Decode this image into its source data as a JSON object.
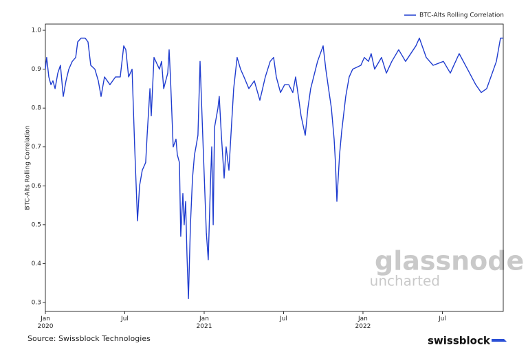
{
  "chart_data": {
    "type": "line",
    "y_label": "BTC-Alts Rolling Correlation",
    "legend": "upper right",
    "source": "Source: Swissblock Technologies",
    "brand": "swissblock",
    "watermark_title": "glassnode",
    "watermark_subtitle": "uncharted",
    "xlim": [
      0,
      34.6
    ],
    "xticks": [
      {
        "value": 0,
        "label": "Jan\n2020"
      },
      {
        "value": 6,
        "label": "Jul"
      },
      {
        "value": 12,
        "label": "Jan\n2021"
      },
      {
        "value": 18,
        "label": "Jul"
      },
      {
        "value": 24,
        "label": "Jan\n2022"
      },
      {
        "value": 30,
        "label": "Jul"
      }
    ],
    "ylim": [
      0.277,
      1.016
    ],
    "yticks": [
      0.3,
      0.4,
      0.5,
      0.6,
      0.7,
      0.8,
      0.9,
      {
        "value": 1,
        "label": "1.0"
      }
    ],
    "series": [
      {
        "name": "BTC-Alts Rolling Correlation",
        "color": "#1f3ccf",
        "x": [
          0,
          0.1,
          0.26,
          0.42,
          0.57,
          0.73,
          0.94,
          1.14,
          1.35,
          1.56,
          1.77,
          2.03,
          2.29,
          2.44,
          2.7,
          3.01,
          3.22,
          3.43,
          3.74,
          4.0,
          4.21,
          4.47,
          4.88,
          5.3,
          5.66,
          5.92,
          6.08,
          6.29,
          6.55,
          6.75,
          6.96,
          7.12,
          7.32,
          7.58,
          7.69,
          7.9,
          8.0,
          8.21,
          8.62,
          8.78,
          8.94,
          9.25,
          9.35,
          9.45,
          9.66,
          9.87,
          9.97,
          10.13,
          10.23,
          10.39,
          10.49,
          10.6,
          10.7,
          10.81,
          10.96,
          11.12,
          11.27,
          11.38,
          11.53,
          11.69,
          11.9,
          12.16,
          12.31,
          12.47,
          12.57,
          12.68,
          12.78,
          13.04,
          13.14,
          13.3,
          13.51,
          13.66,
          13.87,
          13.97,
          14.23,
          14.49,
          14.75,
          15.01,
          15.38,
          15.79,
          16.21,
          16.62,
          16.99,
          17.25,
          17.45,
          17.77,
          18.08,
          18.39,
          18.7,
          18.91,
          19.12,
          19.32,
          19.64,
          19.84,
          20.05,
          20.57,
          20.99,
          21.19,
          21.4,
          21.61,
          21.82,
          21.92,
          22.03,
          22.23,
          22.39,
          22.7,
          22.96,
          23.22,
          23.84,
          24.1,
          24.42,
          24.62,
          24.88,
          25.4,
          25.77,
          26.18,
          26.7,
          27.22,
          28.0,
          28.26,
          28.78,
          29.3,
          30.08,
          30.6,
          31.27,
          31.9,
          32.52,
          32.94,
          33.35,
          33.77,
          34.08,
          34.39,
          34.6
        ],
        "values": [
          0.9,
          0.93,
          0.88,
          0.86,
          0.87,
          0.85,
          0.89,
          0.91,
          0.83,
          0.87,
          0.9,
          0.92,
          0.93,
          0.97,
          0.98,
          0.98,
          0.97,
          0.91,
          0.9,
          0.87,
          0.83,
          0.88,
          0.86,
          0.88,
          0.88,
          0.96,
          0.95,
          0.88,
          0.9,
          0.7,
          0.51,
          0.6,
          0.64,
          0.66,
          0.73,
          0.85,
          0.78,
          0.93,
          0.9,
          0.92,
          0.85,
          0.89,
          0.95,
          0.88,
          0.7,
          0.72,
          0.68,
          0.66,
          0.47,
          0.58,
          0.5,
          0.56,
          0.42,
          0.31,
          0.5,
          0.62,
          0.68,
          0.7,
          0.73,
          0.92,
          0.72,
          0.48,
          0.41,
          0.6,
          0.7,
          0.5,
          0.75,
          0.8,
          0.83,
          0.73,
          0.62,
          0.7,
          0.64,
          0.7,
          0.85,
          0.93,
          0.9,
          0.88,
          0.85,
          0.87,
          0.82,
          0.88,
          0.92,
          0.93,
          0.88,
          0.84,
          0.86,
          0.86,
          0.84,
          0.88,
          0.83,
          0.78,
          0.73,
          0.8,
          0.85,
          0.92,
          0.96,
          0.9,
          0.85,
          0.8,
          0.72,
          0.66,
          0.56,
          0.68,
          0.74,
          0.83,
          0.88,
          0.9,
          0.91,
          0.93,
          0.92,
          0.94,
          0.9,
          0.93,
          0.89,
          0.92,
          0.95,
          0.92,
          0.96,
          0.98,
          0.93,
          0.91,
          0.92,
          0.89,
          0.94,
          0.9,
          0.86,
          0.84,
          0.85,
          0.89,
          0.92,
          0.98,
          0.98
        ]
      }
    ]
  }
}
